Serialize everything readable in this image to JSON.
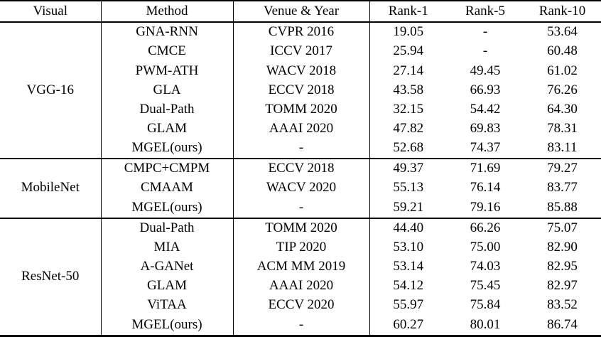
{
  "table": {
    "headers": [
      "Visual",
      "Method",
      "Venue & Year",
      "Rank-1",
      "Rank-5",
      "Rank-10"
    ],
    "groups": [
      {
        "visual": "VGG-16",
        "rows": [
          {
            "method": "GNA-RNN",
            "venue": "CVPR 2016",
            "rank1": "19.05",
            "rank5": "-",
            "rank10": "53.64",
            "bold": false
          },
          {
            "method": "CMCE",
            "venue": "ICCV 2017",
            "rank1": "25.94",
            "rank5": "-",
            "rank10": "60.48",
            "bold": false
          },
          {
            "method": "PWM-ATH",
            "venue": "WACV 2018",
            "rank1": "27.14",
            "rank5": "49.45",
            "rank10": "61.02",
            "bold": false
          },
          {
            "method": "GLA",
            "venue": "ECCV 2018",
            "rank1": "43.58",
            "rank5": "66.93",
            "rank10": "76.26",
            "bold": false
          },
          {
            "method": "Dual-Path",
            "venue": "TOMM 2020",
            "rank1": "32.15",
            "rank5": "54.42",
            "rank10": "64.30",
            "bold": false
          },
          {
            "method": "GLAM",
            "venue": "AAAI 2020",
            "rank1": "47.82",
            "rank5": "69.83",
            "rank10": "78.31",
            "bold": false
          },
          {
            "method": "MGEL(ours)",
            "venue": "-",
            "rank1": "52.68",
            "rank5": "74.37",
            "rank10": "83.11",
            "bold": true
          }
        ]
      },
      {
        "visual": "MobileNet",
        "rows": [
          {
            "method": "CMPC+CMPM",
            "venue": "ECCV 2018",
            "rank1": "49.37",
            "rank5": "71.69",
            "rank10": "79.27",
            "bold": false
          },
          {
            "method": "CMAAM",
            "venue": "WACV 2020",
            "rank1": "55.13",
            "rank5": "76.14",
            "rank10": "83.77",
            "bold": false
          },
          {
            "method": "MGEL(ours)",
            "venue": "-",
            "rank1": "59.21",
            "rank5": "79.16",
            "rank10": "85.88",
            "bold": true
          }
        ]
      },
      {
        "visual": "ResNet-50",
        "rows": [
          {
            "method": "Dual-Path",
            "venue": "TOMM 2020",
            "rank1": "44.40",
            "rank5": "66.26",
            "rank10": "75.07",
            "bold": false
          },
          {
            "method": "MIA",
            "venue": "TIP 2020",
            "rank1": "53.10",
            "rank5": "75.00",
            "rank10": "82.90",
            "bold": false
          },
          {
            "method": "A-GANet",
            "venue": "ACM MM 2019",
            "rank1": "53.14",
            "rank5": "74.03",
            "rank10": "82.95",
            "bold": false
          },
          {
            "method": "GLAM",
            "venue": "AAAI 2020",
            "rank1": "54.12",
            "rank5": "75.45",
            "rank10": "82.97",
            "bold": false
          },
          {
            "method": "ViTAA",
            "venue": "ECCV 2020",
            "rank1": "55.97",
            "rank5": "75.84",
            "rank10": "83.52",
            "bold": false
          },
          {
            "method": "MGEL(ours)",
            "venue": "-",
            "rank1": "60.27",
            "rank5": "80.01",
            "rank10": "86.74",
            "bold": true
          }
        ]
      }
    ],
    "colors": {
      "text": "#000000",
      "background": "#ffffff",
      "border": "#000000"
    }
  }
}
